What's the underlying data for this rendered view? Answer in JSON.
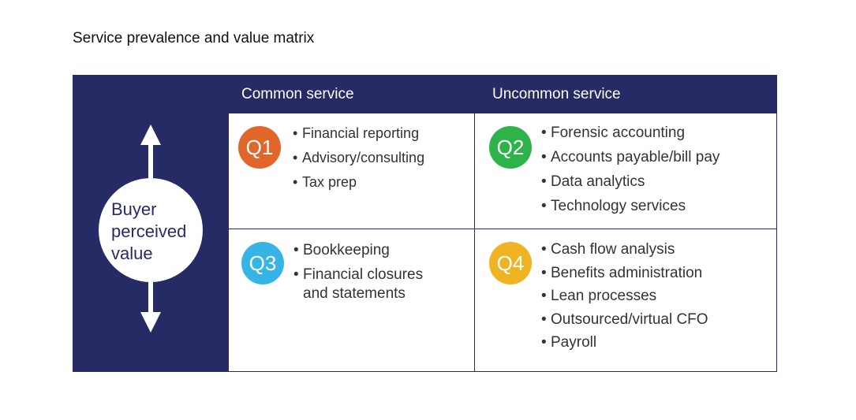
{
  "title": "Service prevalence and value matrix",
  "columns": {
    "common": "Common service",
    "uncommon": "Uncommon service"
  },
  "axis_label": [
    "Buyer",
    "perceived",
    "value"
  ],
  "quadrants": {
    "q1": {
      "label": "Q1",
      "color": "#e0662b",
      "items": [
        "Financial reporting",
        "Advisory/consulting",
        "Tax prep"
      ]
    },
    "q2": {
      "label": "Q2",
      "color": "#2db34a",
      "items": [
        "Forensic accounting",
        "Accounts payable/bill pay",
        "Data analytics",
        "Technology services"
      ]
    },
    "q3": {
      "label": "Q3",
      "color": "#36b4e5",
      "items": [
        "Bookkeeping",
        "Financial closures and statements"
      ]
    },
    "q4": {
      "label": "Q4",
      "color": "#f0b323",
      "items": [
        "Cash flow analysis",
        "Benefits administration",
        "Lean processes",
        "Outsourced/virtual CFO",
        "Payroll"
      ]
    }
  },
  "colors": {
    "navy": "#262b66"
  }
}
